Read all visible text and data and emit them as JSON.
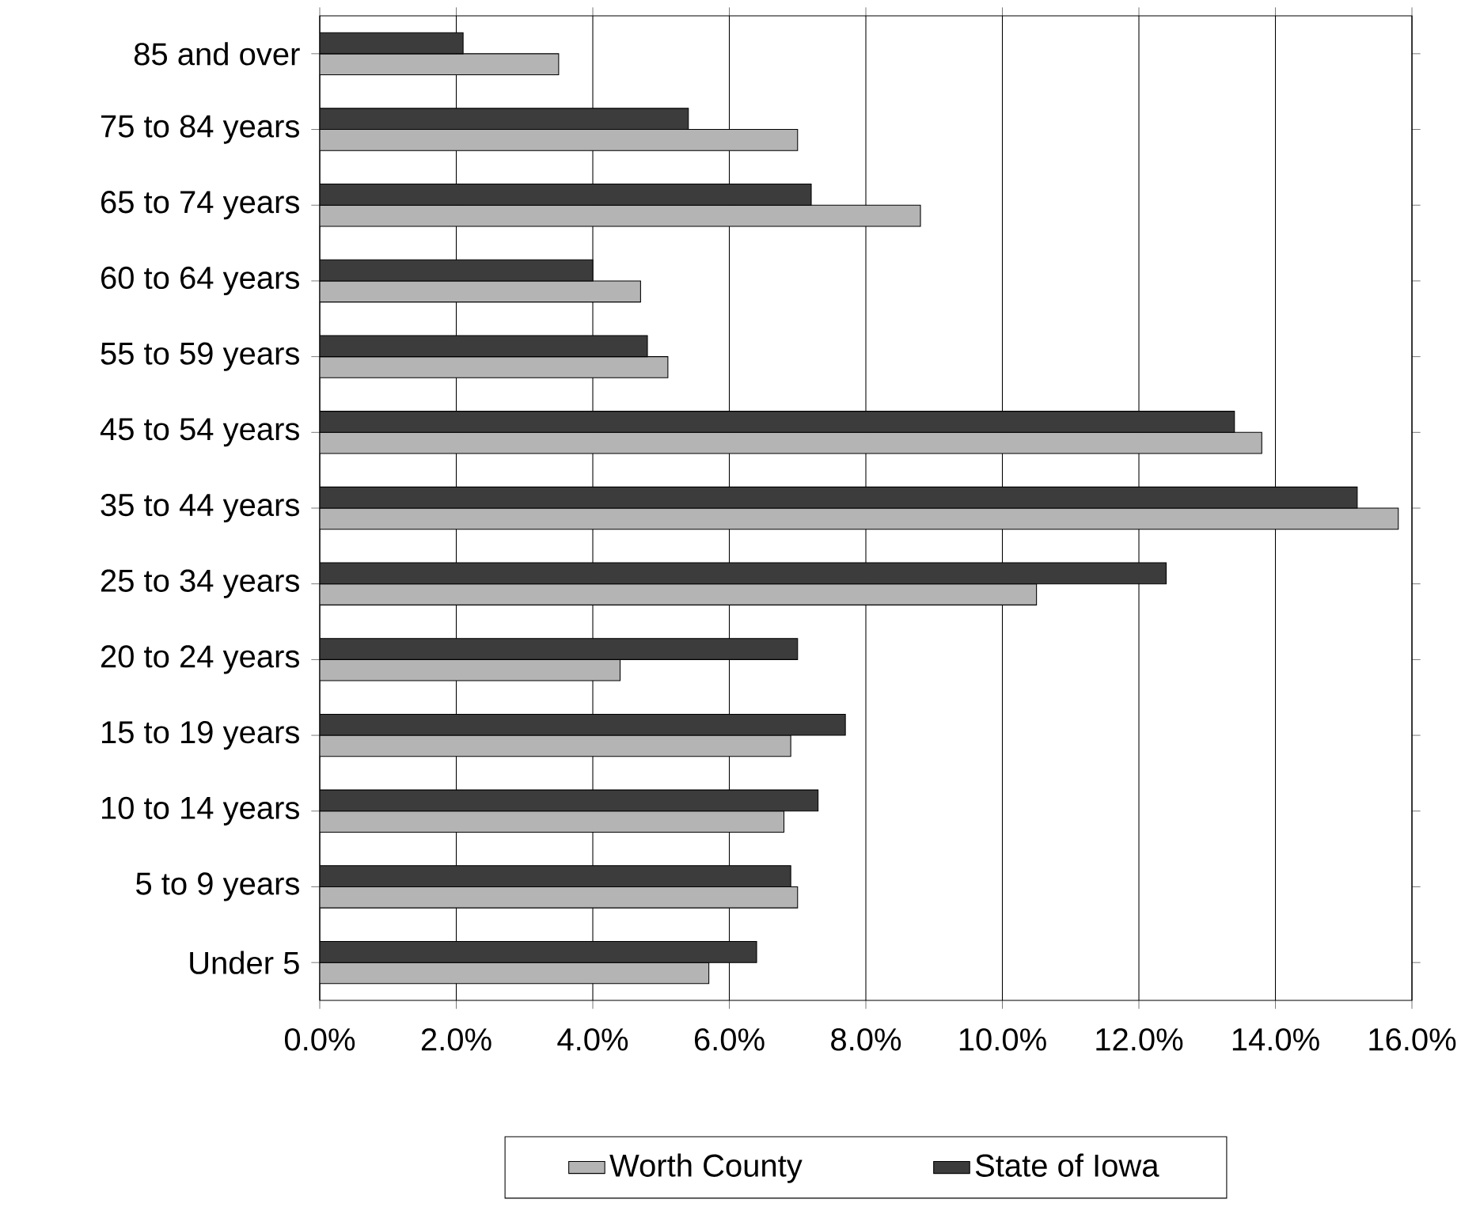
{
  "chart_data": {
    "type": "bar",
    "orientation": "horizontal",
    "categories": [
      "85 and over",
      "75 to 84 years",
      "65 to 74 years",
      "60 to 64 years",
      "55 to 59 years",
      "45 to 54 years",
      "35 to 44 years",
      "25 to 34 years",
      "20 to 24 years",
      "15 to 19 years",
      "10 to 14 years",
      "5 to 9 years",
      "Under 5"
    ],
    "series": [
      {
        "name": "Worth County",
        "color": "#b4b4b4",
        "values": [
          3.5,
          7.0,
          8.8,
          4.7,
          5.1,
          13.8,
          15.8,
          10.5,
          4.4,
          6.9,
          6.8,
          7.0,
          5.7
        ]
      },
      {
        "name": "State of Iowa",
        "color": "#3c3c3c",
        "values": [
          2.1,
          5.4,
          7.2,
          4.0,
          4.8,
          13.4,
          15.2,
          12.4,
          7.0,
          7.7,
          7.3,
          6.9,
          6.4
        ]
      }
    ],
    "xlim": [
      0,
      16
    ],
    "xticks": [
      {
        "value": 0,
        "label": "0.0%"
      },
      {
        "value": 2,
        "label": "2.0%"
      },
      {
        "value": 4,
        "label": "4.0%"
      },
      {
        "value": 6,
        "label": "6.0%"
      },
      {
        "value": 8,
        "label": "8.0%"
      },
      {
        "value": 10,
        "label": "10.0%"
      },
      {
        "value": 12,
        "label": "12.0%"
      },
      {
        "value": 14,
        "label": "14.0%"
      },
      {
        "value": 16,
        "label": "16.0%"
      }
    ],
    "grid": "x",
    "legend": "bottom"
  }
}
